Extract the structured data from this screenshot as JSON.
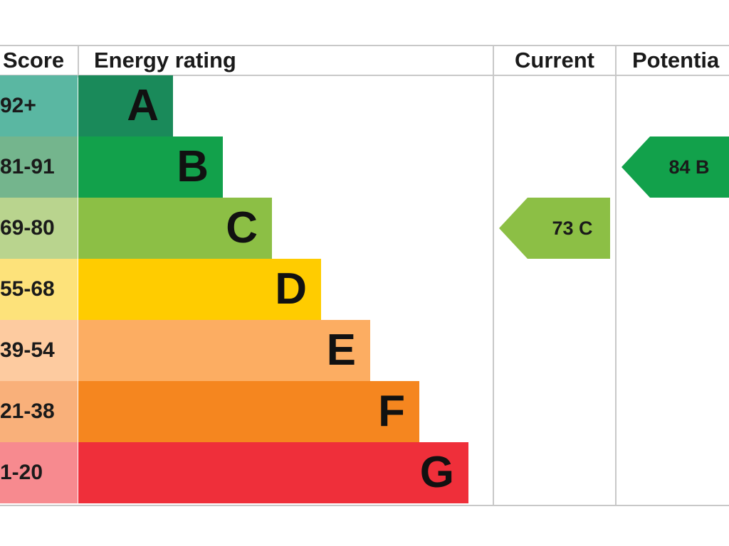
{
  "chart_data": {
    "type": "table",
    "headers": {
      "score": "Score",
      "energy_rating": "Energy rating",
      "current": "Current",
      "potential": "Potentia"
    },
    "bands": [
      {
        "score": "92+",
        "letter": "A",
        "color": "#1a8a5a",
        "score_bg": "#5ab7a2"
      },
      {
        "score": "81-91",
        "letter": "B",
        "color": "#12a14b",
        "score_bg": "#74b58d"
      },
      {
        "score": "69-80",
        "letter": "C",
        "color": "#8cbf45",
        "score_bg": "#b9d48e"
      },
      {
        "score": "55-68",
        "letter": "D",
        "color": "#ffcc00",
        "score_bg": "#fde27a"
      },
      {
        "score": "39-54",
        "letter": "E",
        "color": "#fcad62",
        "score_bg": "#fdcba0"
      },
      {
        "score": "21-38",
        "letter": "F",
        "color": "#f5861f",
        "score_bg": "#f9b07a"
      },
      {
        "score": "1-20",
        "letter": "G",
        "color": "#ef2f3a",
        "score_bg": "#f78a8f"
      }
    ],
    "current": {
      "score": 73,
      "letter": "C",
      "label": "73  C",
      "color": "#8cbf45"
    },
    "potential": {
      "score": 84,
      "letter": "B",
      "label": "84  B",
      "color": "#12a14b"
    }
  }
}
